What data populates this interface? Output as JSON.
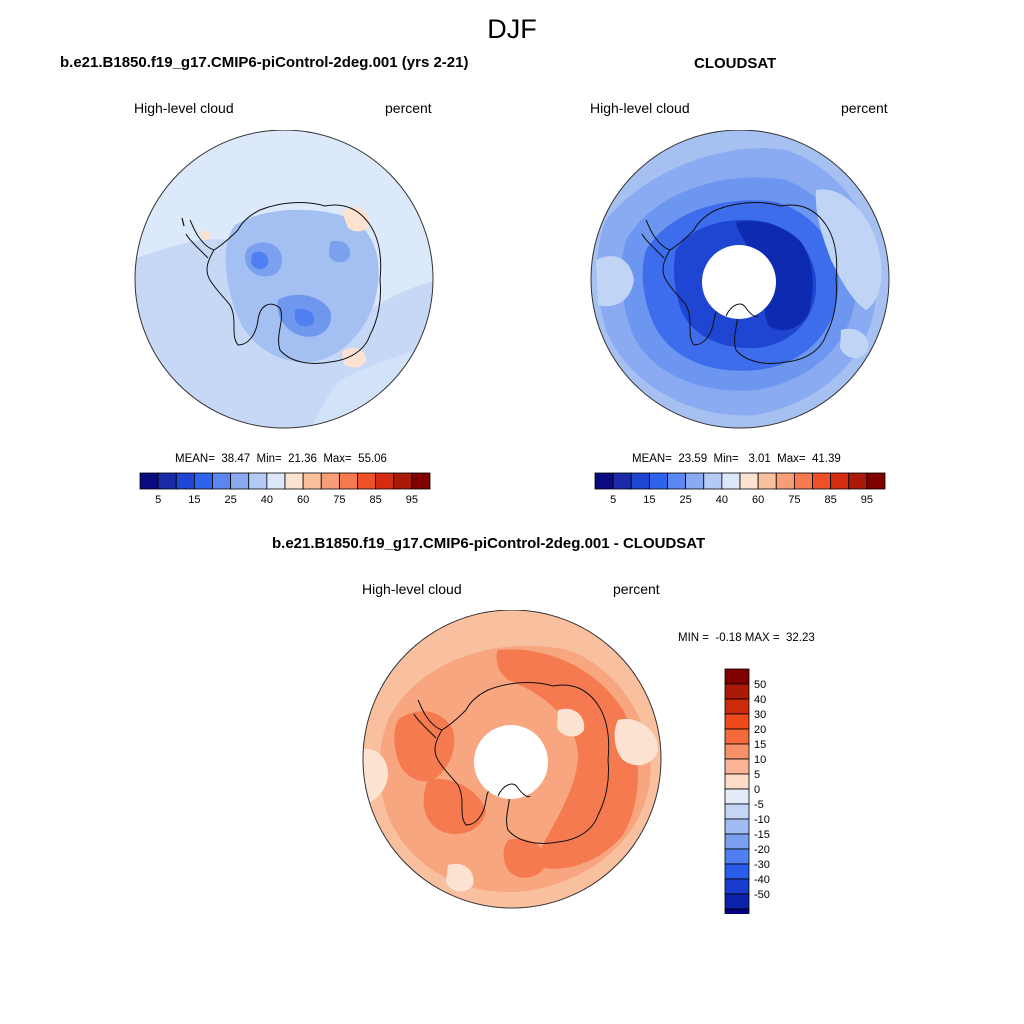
{
  "figure": {
    "season": "DJF"
  },
  "panels": [
    {
      "title": "b.e21.B1850.f19_g17.CMIP6-piControl-2deg.001 (yrs 2-21)",
      "variable": "High-level cloud",
      "units": "percent",
      "stats": {
        "mean_label": "MEAN=",
        "mean": "38.47",
        "min_label": "Min=",
        "min": "21.36",
        "max_label": "Max=",
        "max": "55.06"
      }
    },
    {
      "title": "CLOUDSAT",
      "variable": "High-level cloud",
      "units": "percent",
      "stats": {
        "mean_label": "MEAN=",
        "mean": "23.59",
        "min_label": "Min=",
        "min": "3.01",
        "max_label": "Max=",
        "max": "41.39"
      }
    },
    {
      "title": "b.e21.B1850.f19_g17.CMIP6-piControl-2deg.001 - CLOUDSAT",
      "variable": "High-level cloud",
      "units": "percent",
      "stats_text": "MIN =  -0.18 MAX =  32.23"
    }
  ],
  "colorbar_abs": {
    "colors": [
      "#0a0a80",
      "#1a2aa8",
      "#1e46d2",
      "#2e64ec",
      "#5a88f0",
      "#8aaaf2",
      "#b4cbf5",
      "#dce8fa",
      "#fce2d0",
      "#f9c0a0",
      "#f79e78",
      "#f57a50",
      "#ee5028",
      "#d42c10",
      "#aa1a06",
      "#800000"
    ],
    "tick_labels": [
      "5",
      "15",
      "25",
      "40",
      "60",
      "75",
      "85",
      "95"
    ]
  },
  "colorbar_diff": {
    "colors_top_to_bottom": [
      "#800000",
      "#aa1a06",
      "#cc2a0a",
      "#ee4a1a",
      "#f56a3a",
      "#f8906a",
      "#fab498",
      "#fcdcc8",
      "#e4ecfa",
      "#c4d6f6",
      "#a0bcf2",
      "#7aa0ee",
      "#4f7ff0",
      "#2a5cea",
      "#1a3ccc",
      "#0c22a8",
      "#000080"
    ],
    "tick_labels": [
      "50",
      "40",
      "30",
      "20",
      "15",
      "10",
      "5",
      "0",
      "-5",
      "-10",
      "-15",
      "-20",
      "-30",
      "-40",
      "-50"
    ]
  },
  "map_colors": {
    "ocean_abs_model": "#c6d8f6",
    "lighter_model": "#dce9fb",
    "darker_model": "#a4c0f2",
    "dark_model": "#7aa0ee",
    "darkest_model": "#4f7ff0",
    "warm_model": "#fce2d0",
    "obs_outer": "#a6c0f2",
    "obs_mid": "#6c96f0",
    "obs_inner": "#3d6cec",
    "obs_core": "#1e46d2",
    "obs_deep": "#0e2ab0",
    "diff_outer": "#f9c0a0",
    "diff_mid": "#f79e78",
    "diff_inner": "#f57a50",
    "diff_light": "#fce2d0"
  }
}
